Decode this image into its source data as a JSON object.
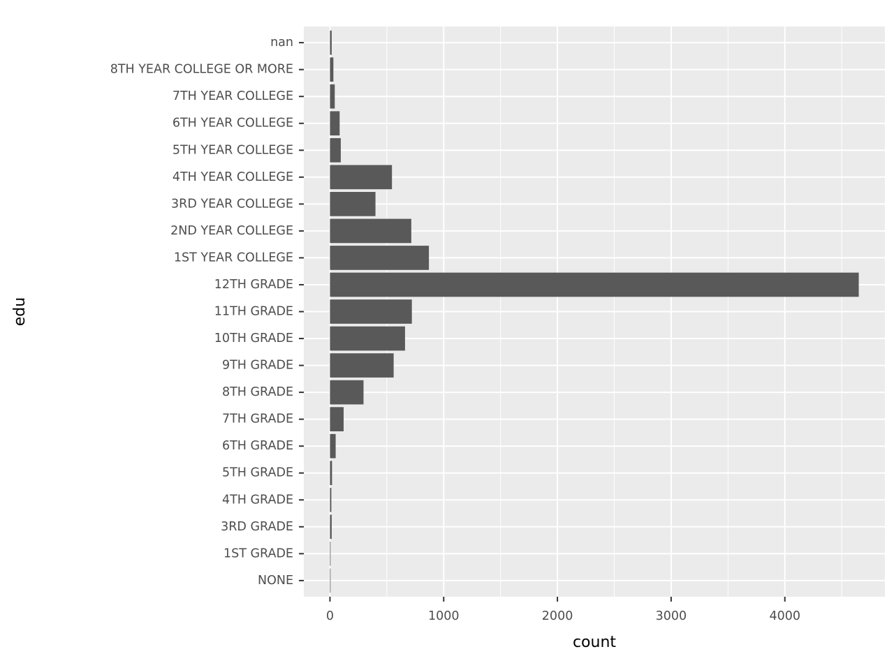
{
  "chart_data": {
    "type": "bar",
    "orientation": "horizontal",
    "title": "",
    "xlabel": "count",
    "ylabel": "edu",
    "xlim": [
      -230,
      4880
    ],
    "x_ticks": [
      0,
      1000,
      2000,
      3000,
      4000
    ],
    "x_tick_labels": [
      "0",
      "1000",
      "2000",
      "3000",
      "4000"
    ],
    "grid": true,
    "legend": "none",
    "categories": [
      "NONE",
      "1ST GRADE",
      "3RD GRADE",
      "4TH GRADE",
      "5TH GRADE",
      "6TH GRADE",
      "7TH GRADE",
      "8TH GRADE",
      "9TH GRADE",
      "10TH GRADE",
      "11TH GRADE",
      "12TH GRADE",
      "1ST YEAR COLLEGE",
      "2ND YEAR COLLEGE",
      "3RD YEAR COLLEGE",
      "4TH YEAR COLLEGE",
      "5TH YEAR COLLEGE",
      "6TH YEAR COLLEGE",
      "7TH YEAR COLLEGE",
      "8TH YEAR COLLEGE OR MORE",
      "nan"
    ],
    "values": [
      3,
      5,
      15,
      12,
      18,
      50,
      120,
      295,
      560,
      660,
      720,
      4650,
      870,
      715,
      400,
      545,
      95,
      85,
      42,
      30,
      15
    ],
    "colors": {
      "bar": "#595959",
      "panel_background": "#ebebeb",
      "grid_major": "#ffffff",
      "tick_text": "#4d4d4d",
      "axis_title": "#000000"
    }
  }
}
